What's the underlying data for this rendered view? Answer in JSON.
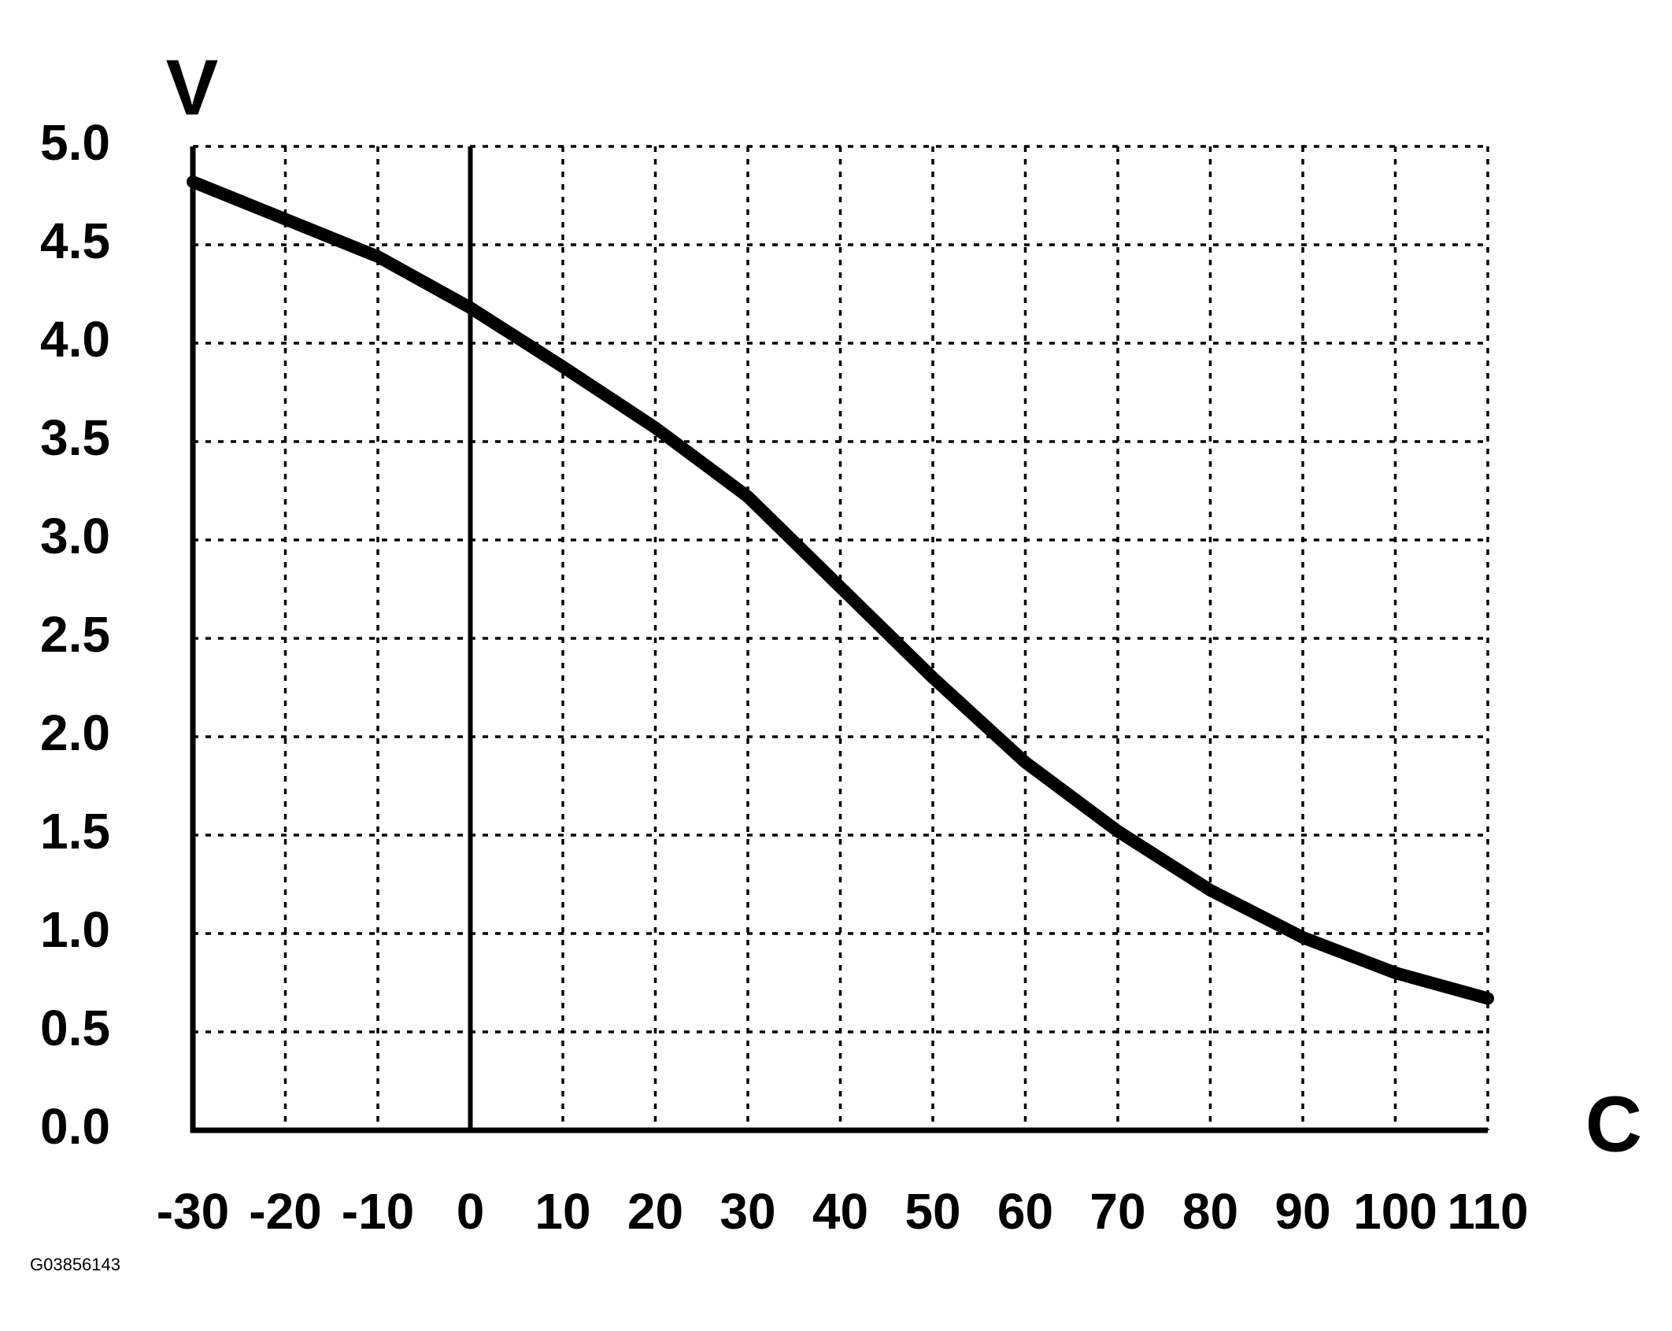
{
  "chart_data": {
    "type": "line",
    "y_label": "V",
    "x_label": "C",
    "footnote": "G03856143",
    "x": [
      -30,
      -20,
      -10,
      0,
      10,
      20,
      30,
      40,
      50,
      60,
      70,
      80,
      90,
      100,
      110
    ],
    "series": [
      {
        "color": "#000000",
        "values": [
          4.82,
          4.63,
          4.44,
          4.18,
          3.88,
          3.57,
          3.22,
          2.76,
          2.3,
          1.87,
          1.52,
          1.22,
          0.98,
          0.8,
          0.67
        ]
      }
    ],
    "xlim": [
      -30,
      110
    ],
    "xticks": [
      -30,
      -20,
      -10,
      0,
      10,
      20,
      30,
      40,
      50,
      60,
      70,
      80,
      90,
      100,
      110
    ],
    "ylim": [
      0,
      5
    ],
    "yticks": [
      {
        "value": 0,
        "label": "0.0"
      },
      {
        "value": 0.5,
        "label": "0.5"
      },
      {
        "value": 1,
        "label": "1.0"
      },
      {
        "value": 1.5,
        "label": "1.5"
      },
      {
        "value": 2,
        "label": "2.0"
      },
      {
        "value": 2.5,
        "label": "2.5"
      },
      {
        "value": 3,
        "label": "3.0"
      },
      {
        "value": 3.5,
        "label": "3.5"
      },
      {
        "value": 4,
        "label": "4.0"
      },
      {
        "value": 4.5,
        "label": "4.5"
      },
      {
        "value": 5,
        "label": "5.0"
      }
    ],
    "grid": true
  }
}
